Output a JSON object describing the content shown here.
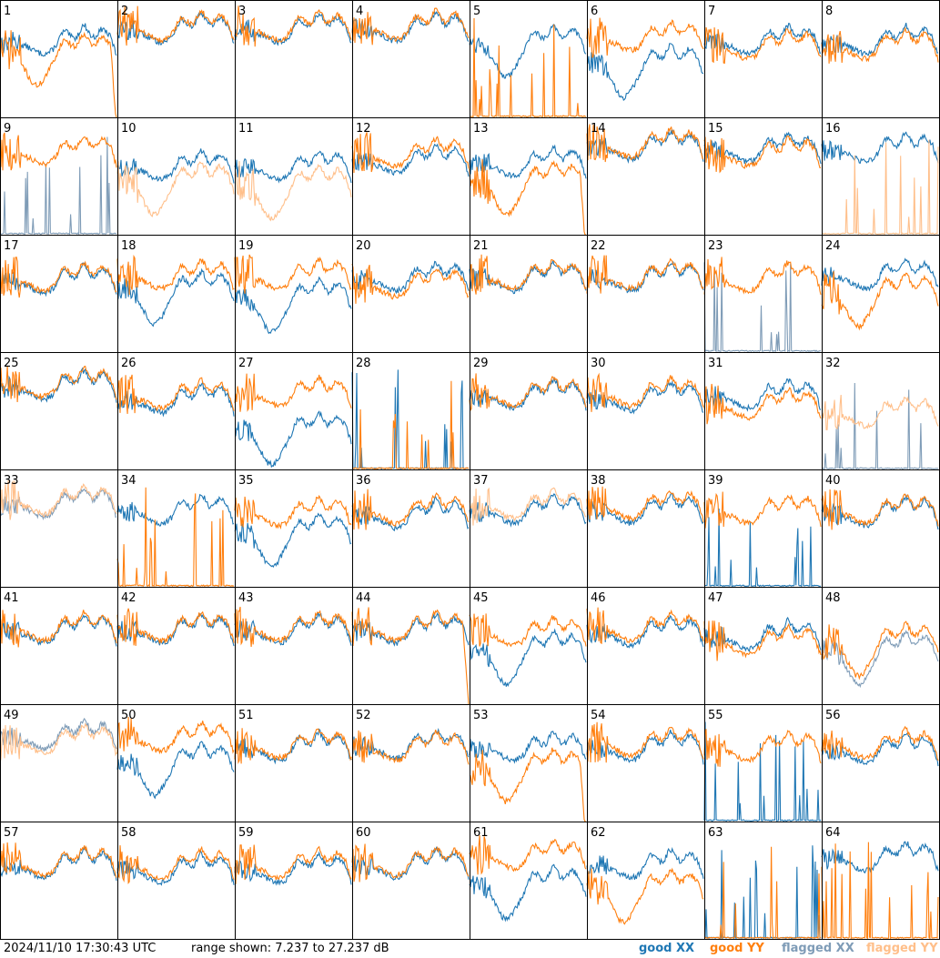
{
  "footer": {
    "timestamp": "2024/11/10 17:30:43 UTC",
    "range_text": "range shown: 7.237 to 27.237 dB"
  },
  "legend": [
    {
      "key": "good_xx",
      "label": "good XX",
      "color": "#1f77b4"
    },
    {
      "key": "good_yy",
      "label": "good YY",
      "color": "#ff7f0e"
    },
    {
      "key": "flagged_xx",
      "label": "flagged XX",
      "color": "#7f9cb7"
    },
    {
      "key": "flagged_yy",
      "label": "flagged YY",
      "color": "#ffbf8a"
    }
  ],
  "chart_data": {
    "type": "line",
    "title": "",
    "grid": {
      "rows": 8,
      "cols": 8
    },
    "ylim": [
      7.237,
      27.237
    ],
    "yunit": "dB",
    "panels": [
      {
        "label": "1",
        "xx": {
          "state": "good",
          "shape": "normal",
          "level": 0.62
        },
        "yy": {
          "state": "good",
          "shape": "dip",
          "level": 0.55,
          "droop": true
        }
      },
      {
        "label": "2",
        "xx": {
          "state": "good",
          "shape": "normal",
          "level": 0.72
        },
        "yy": {
          "state": "good",
          "shape": "normal",
          "level": 0.74
        }
      },
      {
        "label": "3",
        "xx": {
          "state": "good",
          "shape": "normal",
          "level": 0.72
        },
        "yy": {
          "state": "good",
          "shape": "normal",
          "level": 0.74
        }
      },
      {
        "label": "4",
        "xx": {
          "state": "good",
          "shape": "normal",
          "level": 0.73
        },
        "yy": {
          "state": "good",
          "shape": "normal",
          "level": 0.75
        }
      },
      {
        "label": "5",
        "xx": {
          "state": "good",
          "shape": "dip",
          "level": 0.62
        },
        "yy": {
          "state": "good",
          "shape": "spiky",
          "level": 0.0
        }
      },
      {
        "label": "6",
        "xx": {
          "state": "good",
          "shape": "dip",
          "level": 0.45
        },
        "yy": {
          "state": "good",
          "shape": "normal",
          "level": 0.65
        }
      },
      {
        "label": "7",
        "xx": {
          "state": "good",
          "shape": "normal",
          "level": 0.62
        },
        "yy": {
          "state": "good",
          "shape": "normal",
          "level": 0.58
        }
      },
      {
        "label": "8",
        "xx": {
          "state": "good",
          "shape": "normal",
          "level": 0.62
        },
        "yy": {
          "state": "good",
          "shape": "normal",
          "level": 0.58
        }
      },
      {
        "label": "9",
        "xx": {
          "state": "flagged",
          "shape": "spiky",
          "level": 0.0
        },
        "yy": {
          "state": "good",
          "shape": "normal",
          "level": 0.68
        }
      },
      {
        "label": "10",
        "xx": {
          "state": "good",
          "shape": "normal",
          "level": 0.55
        },
        "yy": {
          "state": "flagged",
          "shape": "dip",
          "level": 0.45
        }
      },
      {
        "label": "11",
        "xx": {
          "state": "good",
          "shape": "normal",
          "level": 0.55
        },
        "yy": {
          "state": "flagged",
          "shape": "dip",
          "level": 0.42
        }
      },
      {
        "label": "12",
        "xx": {
          "state": "good",
          "shape": "normal",
          "level": 0.6
        },
        "yy": {
          "state": "good",
          "shape": "normal",
          "level": 0.66
        }
      },
      {
        "label": "13",
        "xx": {
          "state": "good",
          "shape": "normal",
          "level": 0.58
        },
        "yy": {
          "state": "good",
          "shape": "dip",
          "level": 0.45,
          "droop": true
        }
      },
      {
        "label": "14",
        "xx": {
          "state": "good",
          "shape": "normal",
          "level": 0.72
        },
        "yy": {
          "state": "good",
          "shape": "normal",
          "level": 0.74
        }
      },
      {
        "label": "15",
        "xx": {
          "state": "good",
          "shape": "normal",
          "level": 0.7
        },
        "yy": {
          "state": "good",
          "shape": "normal",
          "level": 0.66
        }
      },
      {
        "label": "16",
        "xx": {
          "state": "good",
          "shape": "normal",
          "level": 0.7
        },
        "yy": {
          "state": "flagged",
          "shape": "spiky",
          "level": 0.0
        }
      },
      {
        "label": "17",
        "xx": {
          "state": "good",
          "shape": "normal",
          "level": 0.58
        },
        "yy": {
          "state": "good",
          "shape": "normal",
          "level": 0.6
        }
      },
      {
        "label": "18",
        "xx": {
          "state": "good",
          "shape": "dip",
          "level": 0.52
        },
        "yy": {
          "state": "good",
          "shape": "normal",
          "level": 0.62
        }
      },
      {
        "label": "19",
        "xx": {
          "state": "good",
          "shape": "dip",
          "level": 0.45
        },
        "yy": {
          "state": "good",
          "shape": "normal",
          "level": 0.62
        }
      },
      {
        "label": "20",
        "xx": {
          "state": "good",
          "shape": "normal",
          "level": 0.6
        },
        "yy": {
          "state": "good",
          "shape": "normal",
          "level": 0.55
        }
      },
      {
        "label": "21",
        "xx": {
          "state": "good",
          "shape": "normal",
          "level": 0.6
        },
        "yy": {
          "state": "good",
          "shape": "normal",
          "level": 0.62
        }
      },
      {
        "label": "22",
        "xx": {
          "state": "good",
          "shape": "normal",
          "level": 0.6
        },
        "yy": {
          "state": "good",
          "shape": "normal",
          "level": 0.62
        }
      },
      {
        "label": "23",
        "xx": {
          "state": "flagged",
          "shape": "spiky",
          "level": 0.0
        },
        "yy": {
          "state": "good",
          "shape": "normal",
          "level": 0.6
        }
      },
      {
        "label": "24",
        "xx": {
          "state": "good",
          "shape": "normal",
          "level": 0.62
        },
        "yy": {
          "state": "good",
          "shape": "dip",
          "level": 0.5
        }
      },
      {
        "label": "25",
        "xx": {
          "state": "good",
          "shape": "normal",
          "level": 0.68
        },
        "yy": {
          "state": "good",
          "shape": "normal",
          "level": 0.7
        }
      },
      {
        "label": "26",
        "xx": {
          "state": "good",
          "shape": "normal",
          "level": 0.56
        },
        "yy": {
          "state": "good",
          "shape": "normal",
          "level": 0.6
        }
      },
      {
        "label": "27",
        "xx": {
          "state": "good",
          "shape": "dip",
          "level": 0.32
        },
        "yy": {
          "state": "good",
          "shape": "normal",
          "level": 0.62
        }
      },
      {
        "label": "28",
        "xx": {
          "state": "good",
          "shape": "spiky",
          "level": 0.0
        },
        "yy": {
          "state": "good",
          "shape": "spiky",
          "level": 0.0
        }
      },
      {
        "label": "29",
        "xx": {
          "state": "good",
          "shape": "normal",
          "level": 0.6
        },
        "yy": {
          "state": "good",
          "shape": "normal",
          "level": 0.62
        }
      },
      {
        "label": "30",
        "xx": {
          "state": "good",
          "shape": "normal",
          "level": 0.58
        },
        "yy": {
          "state": "good",
          "shape": "normal",
          "level": 0.62
        }
      },
      {
        "label": "31",
        "xx": {
          "state": "good",
          "shape": "normal",
          "level": 0.6
        },
        "yy": {
          "state": "good",
          "shape": "normal",
          "level": 0.52
        }
      },
      {
        "label": "32",
        "xx": {
          "state": "flagged",
          "shape": "spiky",
          "level": 0.0
        },
        "yy": {
          "state": "flagged",
          "shape": "normal",
          "level": 0.45
        }
      },
      {
        "label": "33",
        "xx": {
          "state": "flagged",
          "shape": "normal",
          "level": 0.68
        },
        "yy": {
          "state": "flagged",
          "shape": "normal",
          "level": 0.7
        }
      },
      {
        "label": "34",
        "xx": {
          "state": "good",
          "shape": "normal",
          "level": 0.62
        },
        "yy": {
          "state": "good",
          "shape": "spiky",
          "level": 0.0
        }
      },
      {
        "label": "35",
        "xx": {
          "state": "good",
          "shape": "dip",
          "level": 0.45
        },
        "yy": {
          "state": "good",
          "shape": "normal",
          "level": 0.6
        }
      },
      {
        "label": "36",
        "xx": {
          "state": "good",
          "shape": "normal",
          "level": 0.58
        },
        "yy": {
          "state": "good",
          "shape": "normal",
          "level": 0.62
        }
      },
      {
        "label": "37",
        "xx": {
          "state": "good",
          "shape": "normal",
          "level": 0.62
        },
        "yy": {
          "state": "flagged",
          "shape": "normal",
          "level": 0.66
        }
      },
      {
        "label": "38",
        "xx": {
          "state": "good",
          "shape": "normal",
          "level": 0.62
        },
        "yy": {
          "state": "good",
          "shape": "normal",
          "level": 0.66
        }
      },
      {
        "label": "39",
        "xx": {
          "state": "good",
          "shape": "spiky",
          "level": 0.0
        },
        "yy": {
          "state": "good",
          "shape": "normal",
          "level": 0.62
        }
      },
      {
        "label": "40",
        "xx": {
          "state": "good",
          "shape": "normal",
          "level": 0.6
        },
        "yy": {
          "state": "good",
          "shape": "normal",
          "level": 0.62
        }
      },
      {
        "label": "41",
        "xx": {
          "state": "good",
          "shape": "normal",
          "level": 0.6
        },
        "yy": {
          "state": "good",
          "shape": "normal",
          "level": 0.62
        }
      },
      {
        "label": "42",
        "xx": {
          "state": "good",
          "shape": "normal",
          "level": 0.6
        },
        "yy": {
          "state": "good",
          "shape": "normal",
          "level": 0.62
        }
      },
      {
        "label": "43",
        "xx": {
          "state": "good",
          "shape": "normal",
          "level": 0.6
        },
        "yy": {
          "state": "good",
          "shape": "normal",
          "level": 0.62
        }
      },
      {
        "label": "44",
        "xx": {
          "state": "good",
          "shape": "normal",
          "level": 0.6
        },
        "yy": {
          "state": "good",
          "shape": "normal",
          "level": 0.62,
          "droop": true
        }
      },
      {
        "label": "45",
        "xx": {
          "state": "good",
          "shape": "dip",
          "level": 0.45
        },
        "yy": {
          "state": "good",
          "shape": "normal",
          "level": 0.58
        }
      },
      {
        "label": "46",
        "xx": {
          "state": "good",
          "shape": "normal",
          "level": 0.58
        },
        "yy": {
          "state": "good",
          "shape": "normal",
          "level": 0.62
        }
      },
      {
        "label": "47",
        "xx": {
          "state": "good",
          "shape": "normal",
          "level": 0.55
        },
        "yy": {
          "state": "good",
          "shape": "normal",
          "level": 0.5
        }
      },
      {
        "label": "48",
        "xx": {
          "state": "flagged",
          "shape": "dip",
          "level": 0.45
        },
        "yy": {
          "state": "good",
          "shape": "dip",
          "level": 0.52
        }
      },
      {
        "label": "49",
        "xx": {
          "state": "flagged",
          "shape": "normal",
          "level": 0.7
        },
        "yy": {
          "state": "flagged",
          "shape": "normal",
          "level": 0.66
        }
      },
      {
        "label": "50",
        "xx": {
          "state": "good",
          "shape": "dip",
          "level": 0.5
        },
        "yy": {
          "state": "good",
          "shape": "normal",
          "level": 0.68
        }
      },
      {
        "label": "51",
        "xx": {
          "state": "good",
          "shape": "normal",
          "level": 0.6
        },
        "yy": {
          "state": "good",
          "shape": "normal",
          "level": 0.62
        }
      },
      {
        "label": "52",
        "xx": {
          "state": "good",
          "shape": "normal",
          "level": 0.62
        },
        "yy": {
          "state": "good",
          "shape": "normal",
          "level": 0.6
        }
      },
      {
        "label": "53",
        "xx": {
          "state": "good",
          "shape": "normal",
          "level": 0.6
        },
        "yy": {
          "state": "good",
          "shape": "dip",
          "level": 0.45,
          "droop": true
        }
      },
      {
        "label": "54",
        "xx": {
          "state": "good",
          "shape": "normal",
          "level": 0.6
        },
        "yy": {
          "state": "good",
          "shape": "normal",
          "level": 0.64
        }
      },
      {
        "label": "55",
        "xx": {
          "state": "good",
          "shape": "spiky",
          "level": 0.0
        },
        "yy": {
          "state": "good",
          "shape": "normal",
          "level": 0.6
        }
      },
      {
        "label": "56",
        "xx": {
          "state": "good",
          "shape": "normal",
          "level": 0.58
        },
        "yy": {
          "state": "good",
          "shape": "normal",
          "level": 0.62
        }
      },
      {
        "label": "57",
        "xx": {
          "state": "good",
          "shape": "normal",
          "level": 0.6
        },
        "yy": {
          "state": "good",
          "shape": "normal",
          "level": 0.62
        }
      },
      {
        "label": "58",
        "xx": {
          "state": "good",
          "shape": "normal",
          "level": 0.56
        },
        "yy": {
          "state": "good",
          "shape": "normal",
          "level": 0.6
        }
      },
      {
        "label": "59",
        "xx": {
          "state": "good",
          "shape": "normal",
          "level": 0.56
        },
        "yy": {
          "state": "good",
          "shape": "normal",
          "level": 0.6
        }
      },
      {
        "label": "60",
        "xx": {
          "state": "good",
          "shape": "normal",
          "level": 0.6
        },
        "yy": {
          "state": "good",
          "shape": "normal",
          "level": 0.62
        }
      },
      {
        "label": "61",
        "xx": {
          "state": "good",
          "shape": "dip",
          "level": 0.45
        },
        "yy": {
          "state": "good",
          "shape": "normal",
          "level": 0.68
        }
      },
      {
        "label": "62",
        "xx": {
          "state": "good",
          "shape": "normal",
          "level": 0.6
        },
        "yy": {
          "state": "good",
          "shape": "dip",
          "level": 0.42
        }
      },
      {
        "label": "63",
        "xx": {
          "state": "good",
          "shape": "spiky",
          "level": 0.0
        },
        "yy": {
          "state": "good",
          "shape": "spiky",
          "level": 0.0
        }
      },
      {
        "label": "64",
        "xx": {
          "state": "good",
          "shape": "normal",
          "level": 0.66
        },
        "yy": {
          "state": "good",
          "shape": "spiky",
          "level": 0.0
        }
      }
    ]
  }
}
